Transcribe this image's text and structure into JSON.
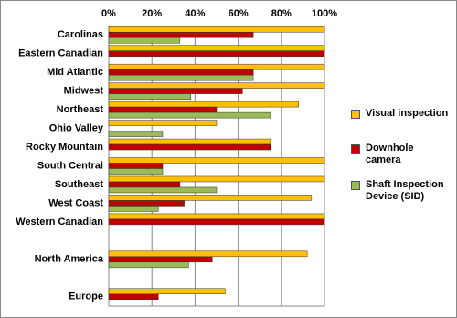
{
  "chart_data": {
    "type": "bar",
    "orientation": "horizontal",
    "categories": [
      "Carolinas",
      "Eastern Canadian",
      "Mid Atlantic",
      "Midwest",
      "Northeast",
      "Ohio Valley",
      "Rocky Mountain",
      "South Central",
      "Southeast",
      "West Coast",
      "Western Canadian",
      null,
      "North America",
      null,
      "Europe"
    ],
    "series": [
      {
        "name": "Visual inspection",
        "color": "#ffc000",
        "values": [
          100,
          100,
          100,
          100,
          88,
          50,
          75,
          100,
          100,
          94,
          100,
          null,
          92,
          null,
          54
        ]
      },
      {
        "name": "Downhole camera",
        "color": "#c00000",
        "values": [
          67,
          100,
          67,
          62,
          50,
          0,
          75,
          25,
          33,
          35,
          100,
          null,
          48,
          null,
          23
        ]
      },
      {
        "name": "Shaft Inspection Device (SID)",
        "color": "#9bbb59",
        "values": [
          33,
          0,
          67,
          38,
          75,
          25,
          0,
          25,
          50,
          23,
          0,
          null,
          37,
          null,
          0
        ]
      }
    ],
    "xlim": [
      0,
      100
    ],
    "xticks": [
      {
        "value": 0,
        "label": "0%"
      },
      {
        "value": 20,
        "label": "20%"
      },
      {
        "value": 40,
        "label": "40%"
      },
      {
        "value": 60,
        "label": "60%"
      },
      {
        "value": 80,
        "label": "80%"
      },
      {
        "value": 100,
        "label": "100%"
      }
    ],
    "grid": true,
    "legend": "right"
  }
}
